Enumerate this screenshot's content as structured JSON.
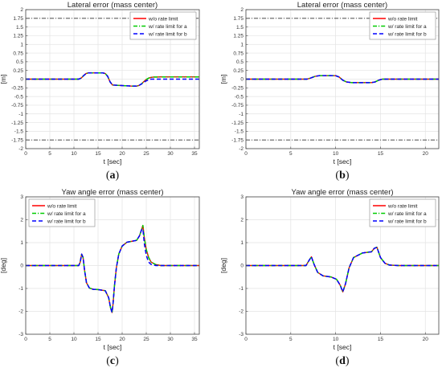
{
  "chart_data": [
    {
      "panel": "a",
      "caption": {
        "open": "(",
        "letter": "a",
        "close": ")"
      },
      "type": "line",
      "title": "Lateral error (mass center)",
      "xlabel": "t [sec]",
      "ylabel": "[m]",
      "xlim": [
        0,
        36
      ],
      "ylim": [
        -2,
        2
      ],
      "xticks": [
        0,
        5,
        10,
        15,
        20,
        25,
        30,
        35
      ],
      "yticks": [
        -2,
        -1.75,
        -1.5,
        -1.25,
        -1,
        -0.75,
        -0.5,
        -0.25,
        0,
        0.25,
        0.5,
        0.75,
        1,
        1.25,
        1.5,
        1.75,
        2
      ],
      "ytick_labels": [
        "-2",
        "-1.75",
        "-1.5",
        "-1.25",
        "-1",
        "-0.75",
        "-0.5",
        "-0.25",
        "0",
        "0.25",
        "0.5",
        "0.75",
        "1",
        "1.25",
        "1.5",
        "1.75",
        "2"
      ],
      "grid": true,
      "legend_position": "top-right",
      "reference_lines": [
        1.75,
        -1.75
      ],
      "series": [
        {
          "name": "w/o rate limit",
          "color": "#ff0000",
          "style": "solid",
          "x": [
            0,
            11,
            11.5,
            12,
            12.5,
            13,
            16,
            16.5,
            17,
            17.5,
            18,
            22,
            23,
            23.5,
            24,
            24.5,
            25,
            25.5,
            26,
            26.5,
            27,
            28,
            36
          ],
          "y": [
            0,
            0,
            0.03,
            0.1,
            0.16,
            0.18,
            0.18,
            0.16,
            0.08,
            -0.08,
            -0.17,
            -0.2,
            -0.2,
            -0.18,
            -0.14,
            -0.07,
            -0.01,
            0.03,
            0.05,
            0.06,
            0.06,
            0.065,
            0.065
          ]
        },
        {
          "name": "w/ rate limit for a",
          "color": "#00cc00",
          "style": "dashdot",
          "x": [
            0,
            11,
            11.5,
            12,
            12.5,
            13,
            16,
            16.5,
            17,
            17.5,
            18,
            22,
            23,
            23.5,
            24,
            24.5,
            25,
            25.5,
            26,
            26.5,
            27,
            28,
            36
          ],
          "y": [
            0,
            0,
            0.03,
            0.1,
            0.16,
            0.18,
            0.18,
            0.16,
            0.08,
            -0.08,
            -0.17,
            -0.2,
            -0.2,
            -0.18,
            -0.14,
            -0.07,
            -0.01,
            0.03,
            0.05,
            0.06,
            0.06,
            0.065,
            0.065
          ]
        },
        {
          "name": "w/ rate limit for b",
          "color": "#0000ff",
          "style": "dashed",
          "x": [
            0,
            11,
            11.5,
            12,
            12.5,
            13,
            16,
            16.5,
            17,
            17.5,
            18,
            22,
            23,
            23.5,
            24,
            24.5,
            25,
            25.5,
            26,
            27,
            36
          ],
          "y": [
            0,
            0,
            0.03,
            0.1,
            0.16,
            0.18,
            0.18,
            0.16,
            0.08,
            -0.08,
            -0.17,
            -0.2,
            -0.2,
            -0.18,
            -0.14,
            -0.09,
            -0.05,
            -0.02,
            0.0,
            0.0,
            0.0
          ]
        }
      ]
    },
    {
      "panel": "b",
      "caption": {
        "open": "(",
        "letter": "b",
        "close": ")"
      },
      "type": "line",
      "title": "Lateral error (mass center)",
      "xlabel": "t [sec]",
      "ylabel": "[m]",
      "xlim": [
        0,
        21.5
      ],
      "ylim": [
        -2,
        2
      ],
      "xticks": [
        0,
        5,
        10,
        15,
        20
      ],
      "yticks": [
        -2,
        -1.75,
        -1.5,
        -1.25,
        -1,
        -0.75,
        -0.5,
        -0.25,
        0,
        0.25,
        0.5,
        0.75,
        1,
        1.25,
        1.5,
        1.75,
        2
      ],
      "ytick_labels": [
        "-2",
        "-1.75",
        "-1.5",
        "-1.25",
        "-1",
        "-0.75",
        "-0.5",
        "-0.25",
        "0",
        "0.25",
        "0.5",
        "0.75",
        "1",
        "1.25",
        "1.5",
        "1.75",
        "2"
      ],
      "grid": true,
      "legend_position": "top-right",
      "reference_lines": [
        1.75,
        -1.75
      ],
      "series": [
        {
          "name": "w/o rate limit",
          "color": "#ff0000",
          "style": "solid",
          "x": [
            0,
            6.8,
            7.2,
            7.7,
            8.2,
            10,
            10.4,
            10.8,
            11.2,
            11.8,
            14,
            14.4,
            14.8,
            15.2,
            21.5
          ],
          "y": [
            0,
            0,
            0.03,
            0.08,
            0.1,
            0.1,
            0.06,
            -0.03,
            -0.08,
            -0.1,
            -0.1,
            -0.08,
            -0.03,
            0,
            0
          ]
        },
        {
          "name": "w/ rate limit for a",
          "color": "#00cc00",
          "style": "dashdot",
          "x": [
            0,
            6.8,
            7.2,
            7.7,
            8.2,
            10,
            10.4,
            10.8,
            11.2,
            11.8,
            14,
            14.4,
            14.8,
            15.2,
            21.5
          ],
          "y": [
            0,
            0,
            0.03,
            0.08,
            0.1,
            0.1,
            0.06,
            -0.03,
            -0.08,
            -0.1,
            -0.1,
            -0.08,
            -0.03,
            0,
            0
          ]
        },
        {
          "name": "w/ rate limit for b",
          "color": "#0000ff",
          "style": "dashed",
          "x": [
            0,
            6.8,
            7.2,
            7.7,
            8.2,
            10,
            10.4,
            10.8,
            11.2,
            11.8,
            14,
            14.4,
            14.8,
            15.2,
            21.5
          ],
          "y": [
            0,
            0,
            0.03,
            0.08,
            0.1,
            0.1,
            0.06,
            -0.03,
            -0.08,
            -0.1,
            -0.1,
            -0.08,
            -0.03,
            0,
            0
          ]
        }
      ]
    },
    {
      "panel": "c",
      "caption": {
        "open": "(",
        "letter": "c",
        "close": ")"
      },
      "type": "line",
      "title": "Yaw angle error (mass center)",
      "xlabel": "t [sec]",
      "ylabel": "[deg]",
      "xlim": [
        0,
        36
      ],
      "ylim": [
        -3,
        3
      ],
      "xticks": [
        0,
        5,
        10,
        15,
        20,
        25,
        30,
        35
      ],
      "yticks": [
        -3,
        -2,
        -1,
        0,
        1,
        2,
        3
      ],
      "ytick_labels": [
        "-3",
        "-2",
        "-1",
        "0",
        "1",
        "2",
        "3"
      ],
      "grid": true,
      "legend_position": "top-left",
      "reference_lines": [],
      "series": [
        {
          "name": "w/o rate limit",
          "color": "#ff0000",
          "style": "solid",
          "x": [
            0,
            11,
            11.3,
            11.6,
            11.9,
            12.2,
            12.6,
            13.2,
            14,
            15,
            16.5,
            17.2,
            17.6,
            17.9,
            18.1,
            18.4,
            18.8,
            19.3,
            20,
            21,
            23,
            23.6,
            24.0,
            24.3,
            24.6,
            25.0,
            25.5,
            26,
            27,
            28,
            36
          ],
          "y": [
            0,
            0,
            0.15,
            0.5,
            0.35,
            -0.2,
            -0.75,
            -0.98,
            -1.04,
            -1.05,
            -1.1,
            -1.4,
            -1.85,
            -2.05,
            -1.7,
            -0.9,
            -0.1,
            0.5,
            0.85,
            1.02,
            1.1,
            1.3,
            1.55,
            1.75,
            1.2,
            0.7,
            0.35,
            0.15,
            0.04,
            0.0,
            0.0
          ]
        },
        {
          "name": "w/ rate limit for a",
          "color": "#00cc00",
          "style": "dashdot",
          "x": [
            0,
            11,
            11.3,
            11.6,
            11.9,
            12.2,
            12.6,
            13.2,
            14,
            15,
            16.5,
            17.2,
            17.6,
            17.9,
            18.1,
            18.4,
            18.8,
            19.3,
            20,
            21,
            23,
            23.6,
            24.0,
            24.3,
            24.6,
            25.0,
            25.5,
            26,
            27,
            28,
            36
          ],
          "y": [
            0,
            0,
            0.15,
            0.5,
            0.35,
            -0.2,
            -0.75,
            -0.98,
            -1.04,
            -1.05,
            -1.1,
            -1.4,
            -1.85,
            -2.05,
            -1.7,
            -0.9,
            -0.1,
            0.5,
            0.85,
            1.02,
            1.1,
            1.3,
            1.55,
            1.75,
            1.2,
            0.7,
            0.35,
            0.15,
            0.04,
            0.0,
            0.0
          ]
        },
        {
          "name": "w/ rate limit for b",
          "color": "#0000ff",
          "style": "dashed",
          "x": [
            0,
            11,
            11.3,
            11.6,
            11.9,
            12.2,
            12.6,
            13.2,
            14,
            15,
            16.5,
            17.2,
            17.6,
            17.9,
            18.1,
            18.4,
            18.8,
            19.3,
            20,
            21,
            23,
            23.6,
            24.0,
            24.3,
            24.6,
            25.0,
            25.5,
            26,
            27,
            28,
            36
          ],
          "y": [
            0,
            0,
            0.15,
            0.5,
            0.35,
            -0.2,
            -0.75,
            -0.98,
            -1.04,
            -1.05,
            -1.1,
            -1.4,
            -1.85,
            -2.05,
            -1.7,
            -0.9,
            -0.1,
            0.5,
            0.85,
            1.02,
            1.1,
            1.3,
            1.55,
            1.6,
            0.95,
            0.45,
            0.15,
            0.05,
            0.0,
            0.0,
            0.0
          ]
        }
      ]
    },
    {
      "panel": "d",
      "caption": {
        "open": "(",
        "letter": "d",
        "close": ")"
      },
      "type": "line",
      "title": "Yaw angle error (mass center)",
      "xlabel": "t [sec]",
      "ylabel": "[deg]",
      "xlim": [
        0,
        21.5
      ],
      "ylim": [
        -3,
        3
      ],
      "xticks": [
        0,
        5,
        10,
        15,
        20
      ],
      "yticks": [
        -3,
        -2,
        -1,
        0,
        1,
        2,
        3
      ],
      "ytick_labels": [
        "-3",
        "-2",
        "-1",
        "0",
        "1",
        "2",
        "3"
      ],
      "grid": true,
      "legend_position": "top-right",
      "reference_lines": [],
      "series": [
        {
          "name": "w/o rate limit",
          "color": "#ff0000",
          "style": "solid",
          "x": [
            0,
            6.7,
            7.0,
            7.3,
            7.6,
            8.0,
            8.6,
            9.5,
            10.1,
            10.5,
            10.8,
            11.1,
            11.5,
            12,
            13,
            14,
            14.3,
            14.6,
            15.0,
            15.5,
            16,
            17,
            21.5
          ],
          "y": [
            0,
            0,
            0.2,
            0.38,
            0.05,
            -0.3,
            -0.45,
            -0.5,
            -0.6,
            -0.85,
            -1.15,
            -0.8,
            -0.1,
            0.35,
            0.55,
            0.6,
            0.75,
            0.8,
            0.35,
            0.1,
            0.02,
            0,
            0
          ]
        },
        {
          "name": "w/ rate limit for a",
          "color": "#00cc00",
          "style": "dashdot",
          "x": [
            0,
            6.7,
            7.0,
            7.3,
            7.6,
            8.0,
            8.6,
            9.5,
            10.1,
            10.5,
            10.8,
            11.1,
            11.5,
            12,
            13,
            14,
            14.3,
            14.6,
            15.0,
            15.5,
            16,
            17,
            21.5
          ],
          "y": [
            0,
            0,
            0.2,
            0.38,
            0.05,
            -0.3,
            -0.45,
            -0.5,
            -0.6,
            -0.85,
            -1.15,
            -0.8,
            -0.1,
            0.35,
            0.55,
            0.6,
            0.75,
            0.8,
            0.35,
            0.1,
            0.02,
            0,
            0
          ]
        },
        {
          "name": "w/ rate limit for b",
          "color": "#0000ff",
          "style": "dashed",
          "x": [
            0,
            6.7,
            7.0,
            7.3,
            7.6,
            8.0,
            8.6,
            9.5,
            10.1,
            10.5,
            10.8,
            11.1,
            11.5,
            12,
            13,
            14,
            14.3,
            14.6,
            15.0,
            15.5,
            16,
            17,
            21.5
          ],
          "y": [
            0,
            0,
            0.2,
            0.38,
            0.05,
            -0.3,
            -0.45,
            -0.5,
            -0.6,
            -0.85,
            -1.15,
            -0.8,
            -0.1,
            0.35,
            0.55,
            0.6,
            0.75,
            0.8,
            0.35,
            0.1,
            0.02,
            0,
            0
          ]
        }
      ]
    }
  ]
}
